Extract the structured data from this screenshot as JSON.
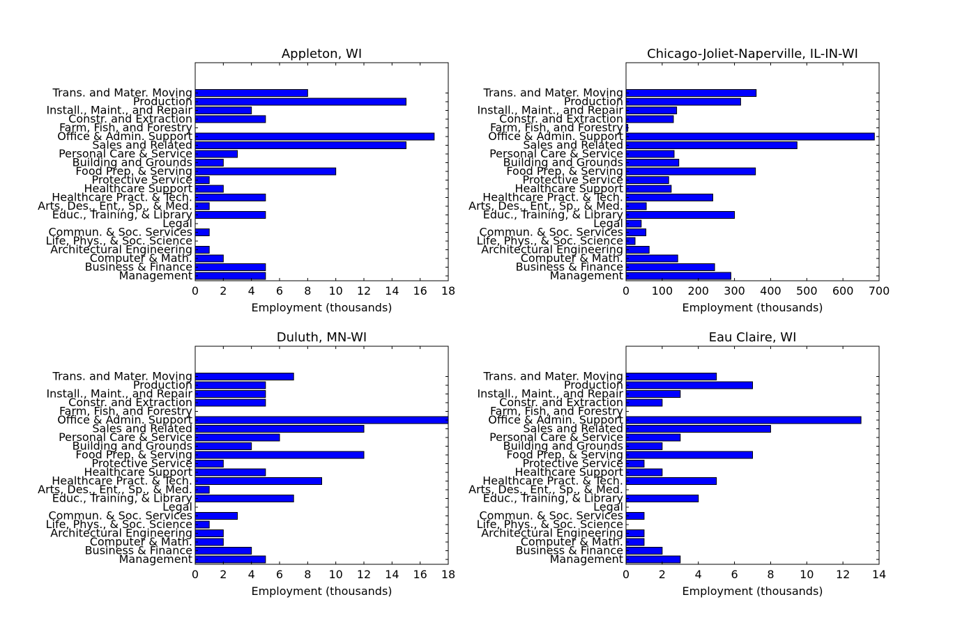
{
  "chart_data": [
    {
      "type": "bar",
      "orientation": "horizontal",
      "title": "Appleton, WI",
      "xlabel": "Employment (thousands)",
      "ylabel": "",
      "xlim": [
        0,
        18
      ],
      "xticks": [
        "0",
        "2",
        "4",
        "6",
        "8",
        "10",
        "12",
        "14",
        "16",
        "18"
      ],
      "categories": [
        "Management",
        "Business & Finance",
        "Computer & Math.",
        "Architectural  Engineering",
        "Life, Phys., & Soc. Science",
        "Commun. & Soc. Services",
        "Legal",
        "Educ., Training, & Library",
        "Arts, Des., Ent., Sp., & Med.",
        "Healthcare Pract. & Tech.",
        "Healthcare Support",
        "Protective Service",
        "Food Prep. & Serving",
        "Building and Grounds",
        "Personal Care & Service",
        "Sales and Related",
        "Office & Admin. Support",
        "Farm, Fish, and Forestry",
        "Constr. and Extraction",
        "Install., Maint., and Repair",
        "Production",
        "Trans. and Mater. Moving"
      ],
      "values": [
        5,
        5,
        2,
        1,
        0,
        1,
        0,
        5,
        1,
        5,
        2,
        1,
        10,
        2,
        3,
        15,
        17,
        0,
        5,
        4,
        15,
        8
      ],
      "bar_color": "#0000ff",
      "grid": false,
      "legend": "none"
    },
    {
      "type": "bar",
      "orientation": "horizontal",
      "title": "Chicago-Joliet-Naperville, IL-IN-WI",
      "xlabel": "Employment (thousands)",
      "ylabel": "",
      "xlim": [
        0,
        700
      ],
      "xticks": [
        "0",
        "100",
        "200",
        "300",
        "400",
        "500",
        "600",
        "700"
      ],
      "categories": [
        "Management",
        "Business & Finance",
        "Computer & Math.",
        "Architectural  Engineering",
        "Life, Phys., & Soc. Science",
        "Commun. & Soc. Services",
        "Legal",
        "Educ., Training, & Library",
        "Arts, Des., Ent., Sp., & Med.",
        "Healthcare Pract. & Tech.",
        "Healthcare Support",
        "Protective Service",
        "Food Prep. & Serving",
        "Building and Grounds",
        "Personal Care & Service",
        "Sales and Related",
        "Office & Admin. Support",
        "Farm, Fish, and Forestry",
        "Constr. and Extraction",
        "Install., Maint., and Repair",
        "Production",
        "Trans. and Mater. Moving"
      ],
      "values": [
        290,
        245,
        143,
        64,
        25,
        55,
        42,
        300,
        56,
        240,
        125,
        118,
        358,
        146,
        133,
        473,
        687,
        5,
        131,
        140,
        317,
        360
      ],
      "bar_color": "#0000ff",
      "grid": false,
      "legend": "none"
    },
    {
      "type": "bar",
      "orientation": "horizontal",
      "title": "Duluth, MN-WI",
      "xlabel": "Employment (thousands)",
      "ylabel": "",
      "xlim": [
        0,
        18
      ],
      "xticks": [
        "0",
        "2",
        "4",
        "6",
        "8",
        "10",
        "12",
        "14",
        "16",
        "18"
      ],
      "categories": [
        "Management",
        "Business & Finance",
        "Computer & Math.",
        "Architectural  Engineering",
        "Life, Phys., & Soc. Science",
        "Commun. & Soc. Services",
        "Legal",
        "Educ., Training, & Library",
        "Arts, Des., Ent., Sp., & Med.",
        "Healthcare Pract. & Tech.",
        "Healthcare Support",
        "Protective Service",
        "Food Prep. & Serving",
        "Building and Grounds",
        "Personal Care & Service",
        "Sales and Related",
        "Office & Admin. Support",
        "Farm, Fish, and Forestry",
        "Constr. and Extraction",
        "Install., Maint., and Repair",
        "Production",
        "Trans. and Mater. Moving"
      ],
      "values": [
        5,
        4,
        2,
        2,
        1,
        3,
        0,
        7,
        1,
        9,
        5,
        2,
        12,
        4,
        6,
        12,
        18,
        0,
        5,
        5,
        5,
        7
      ],
      "bar_color": "#0000ff",
      "grid": false,
      "legend": "none"
    },
    {
      "type": "bar",
      "orientation": "horizontal",
      "title": "Eau Claire, WI",
      "xlabel": "Employment (thousands)",
      "ylabel": "",
      "xlim": [
        0,
        14
      ],
      "xticks": [
        "0",
        "2",
        "4",
        "6",
        "8",
        "10",
        "12",
        "14"
      ],
      "categories": [
        "Management",
        "Business & Finance",
        "Computer & Math.",
        "Architectural  Engineering",
        "Life, Phys., & Soc. Science",
        "Commun. & Soc. Services",
        "Legal",
        "Educ., Training, & Library",
        "Arts, Des., Ent., Sp., & Med.",
        "Healthcare Pract. & Tech.",
        "Healthcare Support",
        "Protective Service",
        "Food Prep. & Serving",
        "Building and Grounds",
        "Personal Care & Service",
        "Sales and Related",
        "Office & Admin. Support",
        "Farm, Fish, and Forestry",
        "Constr. and Extraction",
        "Install., Maint., and Repair",
        "Production",
        "Trans. and Mater. Moving"
      ],
      "values": [
        3,
        2,
        1,
        1,
        0,
        1,
        0,
        4,
        0,
        5,
        2,
        1,
        7,
        2,
        3,
        8,
        13,
        0,
        2,
        3,
        7,
        5
      ],
      "bar_color": "#0000ff",
      "grid": false,
      "legend": "none"
    }
  ]
}
